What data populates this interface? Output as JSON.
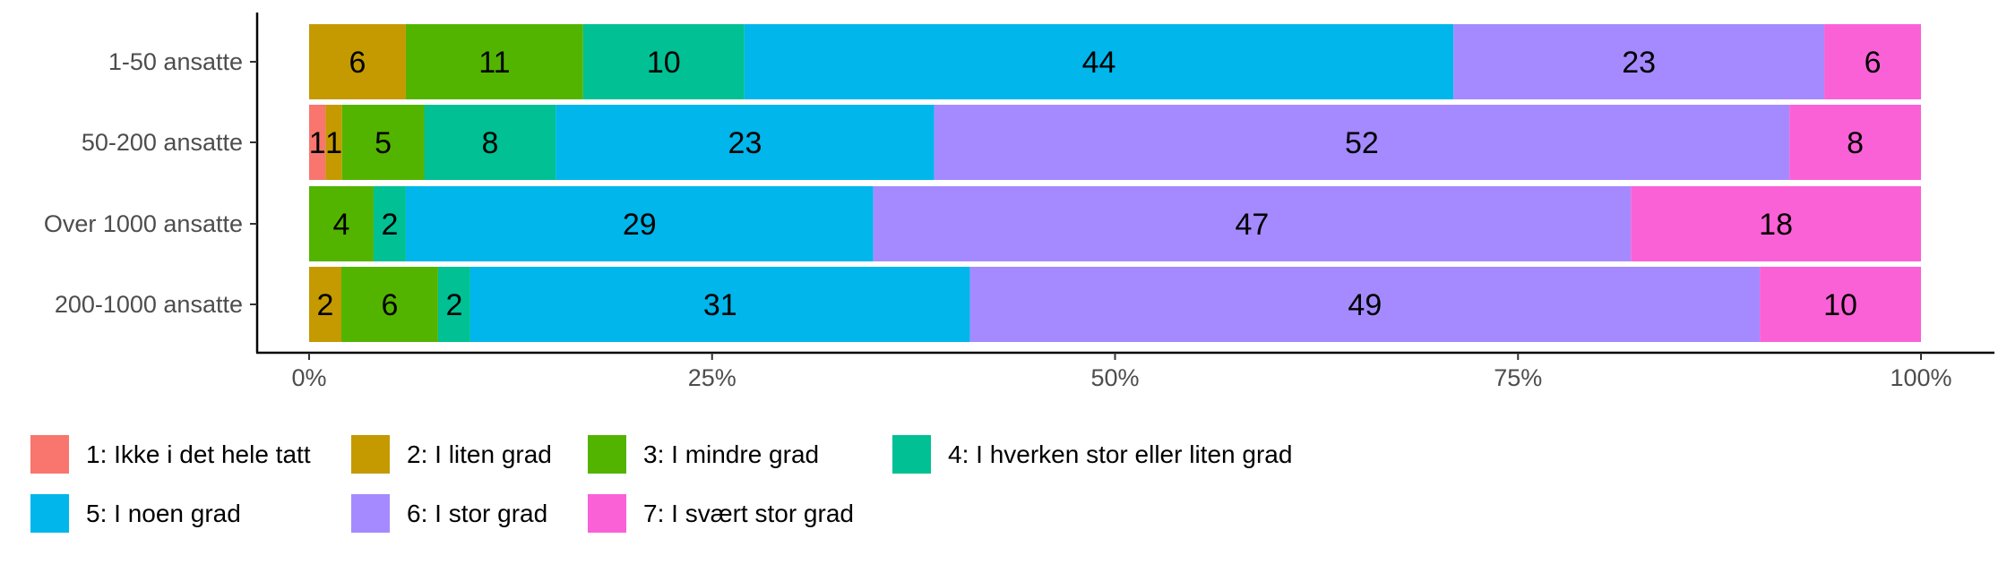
{
  "chart_data": {
    "type": "bar",
    "orientation": "horizontal",
    "stacked": true,
    "normalized": true,
    "title": "",
    "xlabel": "",
    "ylabel": "",
    "xlim": [
      0,
      100
    ],
    "xticks": [
      0,
      25,
      50,
      75,
      100
    ],
    "xtick_labels": [
      "0%",
      "25%",
      "50%",
      "75%",
      "100%"
    ],
    "grid": false,
    "legend_position": "bottom",
    "categories": [
      "1-50 ansatte",
      "50-200 ansatte",
      "Over 1000 ansatte",
      "200-1000 ansatte"
    ],
    "series": [
      {
        "name": "1: Ikke i det hele tatt",
        "color": "#F8766D",
        "values": [
          0,
          1,
          0,
          0
        ],
        "labels": [
          "",
          "1",
          "",
          ""
        ]
      },
      {
        "name": "2: I liten grad",
        "color": "#C49A00",
        "values": [
          6,
          1,
          0,
          2
        ],
        "labels": [
          "6",
          "1",
          "",
          "2"
        ]
      },
      {
        "name": "3: I mindre grad",
        "color": "#53B400",
        "values": [
          11,
          5,
          4,
          6
        ],
        "labels": [
          "11",
          "5",
          "4",
          "6"
        ]
      },
      {
        "name": "4: I hverken stor eller liten grad",
        "color": "#00C094",
        "values": [
          10,
          8,
          2,
          2
        ],
        "labels": [
          "10",
          "8",
          "2",
          "2"
        ]
      },
      {
        "name": "5: I noen grad",
        "color": "#00B6EB",
        "values": [
          44,
          23,
          29,
          31
        ],
        "labels": [
          "44",
          "23",
          "29",
          "31"
        ]
      },
      {
        "name": "6: I stor grad",
        "color": "#A58AFF",
        "values": [
          23,
          52,
          47,
          49
        ],
        "labels": [
          "23",
          "52",
          "47",
          "49"
        ]
      },
      {
        "name": "7: I svært stor grad",
        "color": "#FB61D7",
        "values": [
          6,
          8,
          18,
          10
        ],
        "labels": [
          "6",
          "8",
          "18",
          "10"
        ]
      }
    ]
  }
}
